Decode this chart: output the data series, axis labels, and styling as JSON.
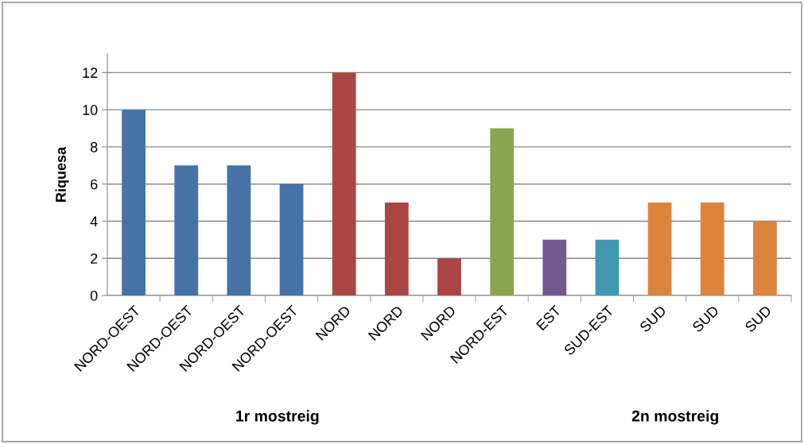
{
  "chart_data": {
    "type": "bar",
    "ylabel": "Riquesa",
    "categories": [
      "NORD-OEST",
      "NORD-OEST",
      "NORD-OEST",
      "NORD-OEST",
      "NORD",
      "NORD",
      "NORD",
      "NORD-EST",
      "EST",
      "SUD-EST",
      "SUD",
      "SUD",
      "SUD"
    ],
    "values": [
      10,
      7,
      7,
      6,
      12,
      5,
      2,
      9,
      3,
      3,
      5,
      5,
      4
    ],
    "colors": [
      "#4572a7",
      "#4572a7",
      "#4572a7",
      "#4572a7",
      "#aa4643",
      "#aa4643",
      "#aa4643",
      "#89a54e",
      "#71588f",
      "#4198af",
      "#db843d",
      "#db843d",
      "#db843d"
    ],
    "ylim": [
      0,
      13
    ],
    "yticks": [
      0,
      2,
      4,
      6,
      8,
      10,
      12
    ],
    "grid": "y",
    "legend": false,
    "annotations": [
      "1r mostreig",
      "2n mostreig"
    ]
  }
}
